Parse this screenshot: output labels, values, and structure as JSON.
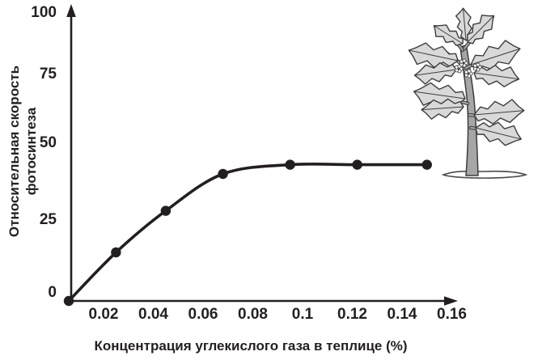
{
  "figure": {
    "background": "#ffffff",
    "ink_color": "#231f20"
  },
  "chart_data": {
    "type": "line",
    "title": "",
    "xlabel": "Концентрация углекислого газа в теплице (%)",
    "ylabel": "Относительная скорость фотосинтеза",
    "ylabel_lines": [
      "Относительная скорость",
      "фотосинтеза"
    ],
    "x_ticks": [
      "0.02",
      "0.04",
      "0.06",
      "0.08",
      "0.1",
      "0.12",
      "0.14",
      "0.16"
    ],
    "y_ticks": [
      "100",
      "75",
      "50",
      "25",
      "0"
    ],
    "xlim": [
      0,
      0.17
    ],
    "ylim": [
      0,
      100
    ],
    "grid": false,
    "legend": null,
    "series": [
      {
        "name": "относительная скорость фотосинтеза",
        "points": [
          [
            0,
            0
          ],
          [
            0.025,
            15
          ],
          [
            0.045,
            28
          ],
          [
            0.068,
            40
          ],
          [
            0.095,
            43
          ],
          [
            0.122,
            43
          ],
          [
            0.15,
            43
          ]
        ]
      }
    ]
  },
  "illustration": {
    "subject": "tomato-plant",
    "leaf_color": "#d9d9d9",
    "stem_color": "#a6a6a6",
    "outline_color": "#3d3d3d",
    "ground_color": "#ffffff"
  }
}
